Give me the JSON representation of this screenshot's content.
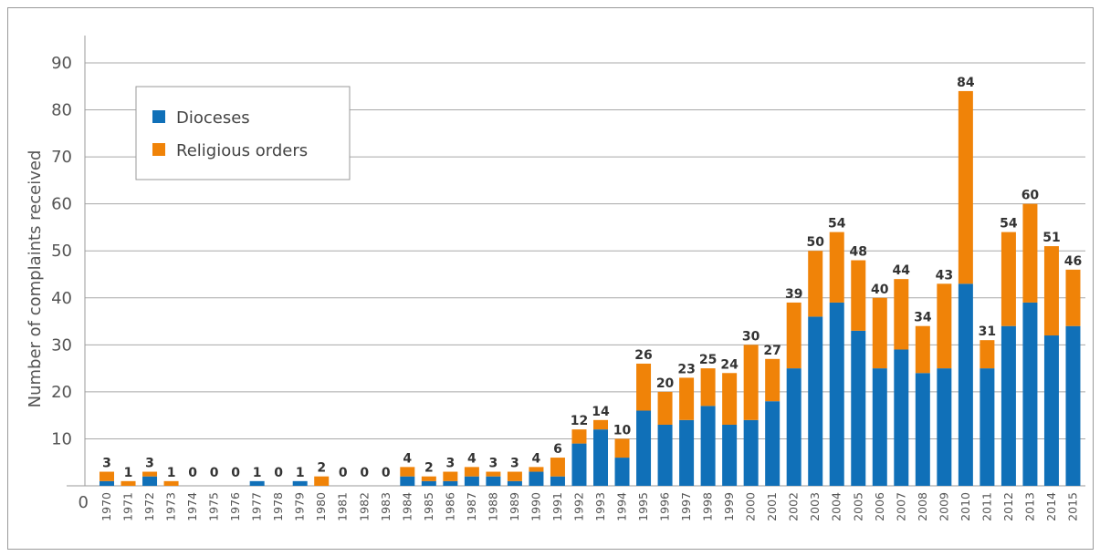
{
  "chart_data": {
    "type": "bar",
    "stacked": true,
    "title": "",
    "xlabel": "",
    "ylabel": "Number of complaints received",
    "ylim": [
      0,
      90
    ],
    "yticks": [
      0,
      10,
      20,
      30,
      40,
      50,
      60,
      70,
      80,
      90
    ],
    "grid": true,
    "legend_position": "top-left",
    "categories": [
      "1970",
      "1971",
      "1972",
      "1973",
      "1974",
      "1975",
      "1976",
      "1977",
      "1978",
      "1979",
      "1980",
      "1981",
      "1982",
      "1983",
      "1984",
      "1985",
      "1986",
      "1987",
      "1988",
      "1989",
      "1990",
      "1991",
      "1992",
      "1993",
      "1994",
      "1995",
      "1996",
      "1997",
      "1998",
      "1999",
      "2000",
      "2001",
      "2002",
      "2003",
      "2004",
      "2005",
      "2006",
      "2007",
      "2008",
      "2009",
      "2010",
      "2011",
      "2012",
      "2013",
      "2014",
      "2015"
    ],
    "series": [
      {
        "name": "Dioceses",
        "color": "#1070b8",
        "values": [
          1,
          0,
          2,
          0,
          0,
          0,
          0,
          1,
          0,
          1,
          0,
          0,
          0,
          0,
          2,
          1,
          1,
          2,
          2,
          1,
          3,
          2,
          9,
          12,
          6,
          16,
          13,
          14,
          17,
          13,
          14,
          18,
          25,
          36,
          39,
          33,
          25,
          29,
          24,
          25,
          43,
          25,
          34,
          39,
          32,
          34
        ]
      },
      {
        "name": "Religious orders",
        "color": "#f08308",
        "values": [
          2,
          1,
          1,
          1,
          0,
          0,
          0,
          0,
          0,
          0,
          2,
          0,
          0,
          0,
          2,
          1,
          2,
          2,
          1,
          2,
          1,
          4,
          3,
          2,
          4,
          10,
          7,
          9,
          8,
          11,
          16,
          9,
          14,
          14,
          15,
          15,
          15,
          15,
          10,
          18,
          41,
          6,
          20,
          21,
          19,
          12
        ]
      }
    ],
    "totals": [
      3,
      1,
      3,
      1,
      0,
      0,
      0,
      1,
      0,
      1,
      2,
      0,
      0,
      0,
      4,
      2,
      3,
      4,
      3,
      3,
      4,
      6,
      12,
      14,
      10,
      26,
      20,
      23,
      25,
      24,
      30,
      27,
      39,
      50,
      54,
      48,
      40,
      44,
      34,
      43,
      84,
      31,
      54,
      60,
      51,
      46
    ]
  }
}
